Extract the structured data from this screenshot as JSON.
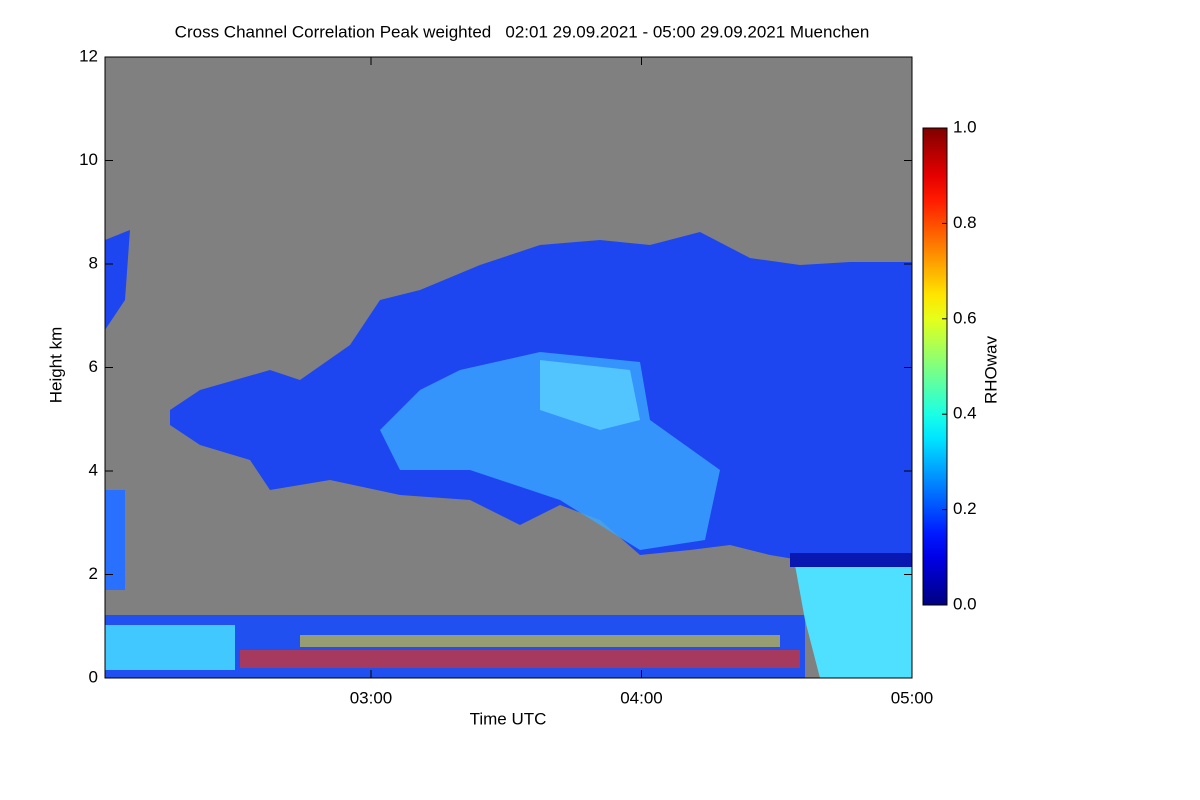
{
  "chart_data": {
    "type": "heatmap",
    "title": "Cross Channel Correlation Peak weighted   02:01 29.09.2021 - 05:00 29.09.2021 Muenchen",
    "x_label": "Time UTC",
    "y_label": "Height km",
    "colorbar_label": "RHOwav",
    "xlim": [
      121,
      300
    ],
    "xticks": [
      {
        "value": 180,
        "label": "03:00"
      },
      {
        "value": 240,
        "label": "04:00"
      },
      {
        "value": 300,
        "label": "05:00"
      }
    ],
    "ylim": [
      0,
      12
    ],
    "yticks": [
      0,
      2,
      4,
      6,
      8,
      10,
      12
    ],
    "clim": [
      0,
      1
    ],
    "cticks": [
      {
        "value": 0,
        "label": "0.0"
      },
      {
        "value": 0.2,
        "label": "0.2"
      },
      {
        "value": 0.4,
        "label": "0.4"
      },
      {
        "value": 0.6,
        "label": "0.6"
      },
      {
        "value": 0.8,
        "label": "0.8"
      },
      {
        "value": 1,
        "label": "1.0"
      }
    ],
    "colormap": "jet",
    "background_color": "#808080"
  }
}
